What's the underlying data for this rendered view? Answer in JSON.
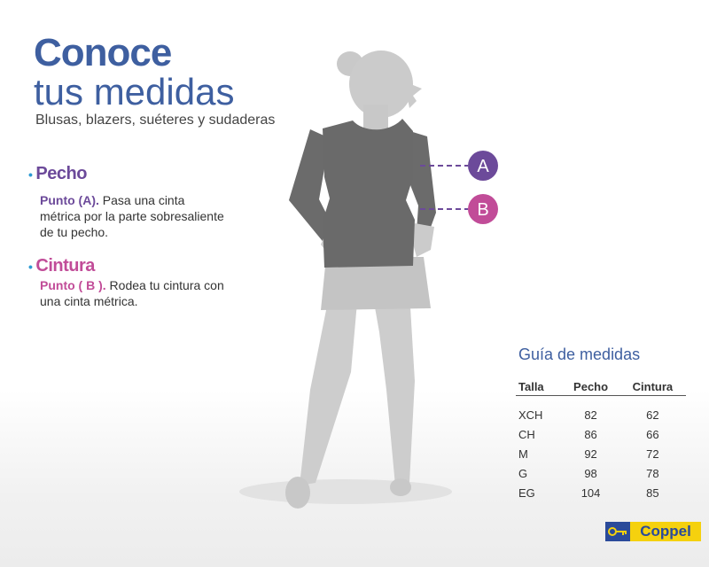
{
  "header": {
    "title_line1": "Conoce",
    "title_line2": "tus medidas",
    "subtitle": "Blusas, blazers, suéteres y sudaderas"
  },
  "sections": {
    "pecho": {
      "bullet": "•",
      "title": "Pecho",
      "point": "Punto (A).",
      "text": " Pasa una cinta métrica por la parte sobresaliente de tu pecho."
    },
    "cintura": {
      "bullet": "•",
      "title": "Cintura",
      "point": "Punto  ( B ).",
      "text": " Rodea tu cintura con una cinta métrica."
    }
  },
  "markers": {
    "a": {
      "label": "A",
      "color": "#6c4a9a"
    },
    "b": {
      "label": "B",
      "color": "#c14c98"
    }
  },
  "guide": {
    "title": "Guía de medidas",
    "headers": [
      "Talla",
      "Pecho",
      "Cintura"
    ],
    "rows": [
      [
        "XCH",
        "82",
        "62"
      ],
      [
        "CH",
        "86",
        "66"
      ],
      [
        "M",
        "92",
        "72"
      ],
      [
        "G",
        "98",
        "78"
      ],
      [
        "EG",
        "104",
        "85"
      ]
    ]
  },
  "logo": {
    "text": "Coppel",
    "icon": "key-icon",
    "brand_blue": "#2a4a9a",
    "brand_yellow": "#f5d10e"
  },
  "colors": {
    "title_blue": "#3e5fa0",
    "pecho_purple": "#6c4a9a",
    "cintura_pink": "#c14c98",
    "bullet_blue": "#2d9bd3"
  }
}
